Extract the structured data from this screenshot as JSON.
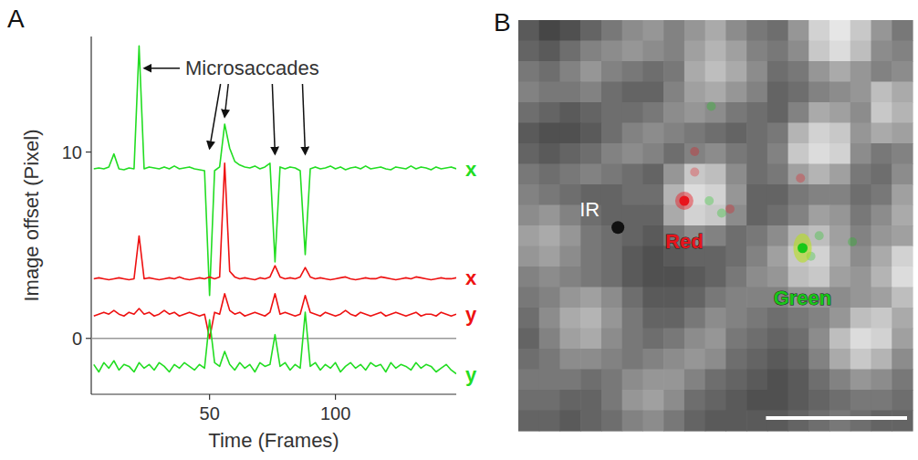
{
  "chart_data": [
    {
      "type": "line",
      "panel": "A",
      "y_label": "Image offset (Pixel)",
      "x_label": "Time (Frames)",
      "xlim": [
        3,
        148
      ],
      "ylim": [
        -3,
        16.2
      ],
      "xticks": [
        50,
        100
      ],
      "yticks": [
        0,
        10
      ],
      "reference_line": 0,
      "annotation": {
        "text": "Microsaccades",
        "targets": [
          {
            "x": 22,
            "y": 14.5
          },
          {
            "x": 50,
            "y": 10.2
          },
          {
            "x": 56,
            "y": 11.9
          },
          {
            "x": 76,
            "y": 9.9
          },
          {
            "x": 88,
            "y": 9.9
          }
        ]
      },
      "x": [
        4,
        6,
        8,
        10,
        12,
        14,
        16,
        18,
        20,
        22,
        24,
        26,
        28,
        30,
        32,
        34,
        36,
        38,
        40,
        42,
        44,
        46,
        48,
        50,
        52,
        54,
        56,
        58,
        60,
        62,
        64,
        66,
        68,
        70,
        72,
        74,
        76,
        78,
        80,
        82,
        84,
        86,
        88,
        90,
        92,
        94,
        96,
        98,
        100,
        102,
        104,
        106,
        108,
        110,
        112,
        114,
        116,
        118,
        120,
        122,
        124,
        126,
        128,
        130,
        132,
        134,
        136,
        138,
        140,
        142,
        144,
        146,
        148
      ],
      "series": [
        {
          "name": "x",
          "color": "#22dd22",
          "values": [
            9.1,
            9.15,
            9.1,
            9.2,
            9.9,
            9.1,
            9.05,
            9.15,
            9.1,
            15.7,
            9.1,
            9.2,
            9.15,
            9.1,
            9.2,
            9.1,
            9.25,
            9.1,
            9.15,
            9.2,
            9.1,
            9.05,
            9.0,
            2.3,
            9.0,
            9.2,
            11.5,
            10.2,
            9.5,
            9.3,
            9.2,
            9.15,
            9.25,
            9.1,
            9.2,
            9.4,
            4.1,
            9.2,
            9.1,
            9.2,
            9.15,
            9.0,
            4.5,
            9.1,
            9.2,
            9.1,
            9.15,
            9.25,
            9.1,
            9.2,
            9.05,
            9.15,
            9.2,
            9.1,
            9.25,
            9.1,
            9.15,
            9.2,
            9.1,
            9.05,
            9.2,
            9.15,
            9.1,
            9.25,
            9.1,
            9.2,
            9.15,
            9.05,
            9.2,
            9.1,
            9.15,
            9.2,
            9.1
          ]
        },
        {
          "name": "x",
          "color": "#ee1111",
          "values": [
            3.2,
            3.25,
            3.2,
            3.15,
            3.2,
            3.25,
            3.2,
            3.15,
            3.2,
            5.5,
            3.2,
            3.25,
            3.2,
            3.15,
            3.2,
            3.25,
            3.2,
            3.3,
            3.2,
            3.15,
            3.2,
            3.25,
            3.2,
            3.3,
            3.2,
            3.3,
            9.4,
            3.6,
            3.3,
            3.2,
            3.25,
            3.2,
            3.15,
            3.25,
            3.2,
            3.3,
            3.9,
            3.3,
            3.2,
            3.25,
            3.2,
            3.3,
            3.8,
            3.3,
            3.2,
            3.25,
            3.2,
            3.15,
            3.2,
            3.25,
            3.3,
            3.2,
            3.15,
            3.2,
            3.25,
            3.2,
            3.2,
            3.3,
            3.25,
            3.2,
            3.15,
            3.2,
            3.25,
            3.2,
            3.3,
            3.25,
            3.2,
            3.15,
            3.2,
            3.25,
            3.2,
            3.2,
            3.25
          ]
        },
        {
          "name": "y",
          "color": "#ee1111",
          "values": [
            1.2,
            1.3,
            1.4,
            1.3,
            1.5,
            1.3,
            1.2,
            1.4,
            1.3,
            1.6,
            1.3,
            1.4,
            1.2,
            1.3,
            1.5,
            1.3,
            1.4,
            1.2,
            1.3,
            1.4,
            1.3,
            1.2,
            1.3,
            0.0,
            1.4,
            1.3,
            2.4,
            1.5,
            1.3,
            1.4,
            1.2,
            1.3,
            1.4,
            1.3,
            1.2,
            1.4,
            2.4,
            1.3,
            1.4,
            1.3,
            1.2,
            1.3,
            2.3,
            1.4,
            1.3,
            1.2,
            1.4,
            1.3,
            1.2,
            1.3,
            1.5,
            1.3,
            1.2,
            1.4,
            1.3,
            1.2,
            1.3,
            1.4,
            1.2,
            1.3,
            1.4,
            1.3,
            1.2,
            1.3,
            1.4,
            1.2,
            1.3,
            1.3,
            1.2,
            1.4,
            1.3,
            1.2,
            1.3
          ]
        },
        {
          "name": "y",
          "color": "#22dd22",
          "values": [
            -1.4,
            -1.8,
            -1.3,
            -1.6,
            -1.2,
            -1.7,
            -1.4,
            -1.5,
            -1.8,
            -1.3,
            -1.6,
            -1.4,
            -1.7,
            -1.3,
            -1.5,
            -1.8,
            -1.4,
            -1.6,
            -1.3,
            -1.5,
            -1.7,
            -1.4,
            -1.6,
            1.0,
            -1.3,
            -1.5,
            -0.7,
            -1.4,
            -1.7,
            -1.3,
            -1.6,
            -1.4,
            -1.8,
            -1.3,
            -1.5,
            -1.4,
            0.2,
            -1.5,
            -1.3,
            -1.7,
            -1.4,
            -1.6,
            1.4,
            -1.5,
            -1.3,
            -1.7,
            -1.4,
            -1.6,
            -1.3,
            -1.8,
            -1.5,
            -1.3,
            -1.6,
            -1.4,
            -1.7,
            -1.3,
            -1.5,
            -1.4,
            -1.8,
            -1.3,
            -1.6,
            -1.4,
            -1.5,
            -1.7,
            -1.3,
            -1.6,
            -1.4,
            -1.5,
            -1.8,
            -1.6,
            -1.4,
            -1.7,
            -1.9
          ]
        }
      ]
    },
    {
      "type": "heatmap",
      "panel": "B",
      "zlim": [
        0,
        255
      ],
      "scale_bar": 6.8,
      "cells": [
        [
          90,
          70,
          80,
          100,
          120,
          140,
          150,
          130,
          150,
          170,
          140,
          120,
          110,
          150,
          210,
          230,
          200,
          150,
          120
        ],
        [
          100,
          90,
          110,
          130,
          140,
          150,
          140,
          130,
          160,
          180,
          160,
          130,
          120,
          140,
          200,
          220,
          190,
          140,
          130
        ],
        [
          120,
          110,
          130,
          150,
          130,
          120,
          110,
          120,
          170,
          190,
          170,
          140,
          110,
          120,
          150,
          170,
          150,
          130,
          140
        ],
        [
          130,
          120,
          120,
          130,
          110,
          100,
          100,
          130,
          160,
          170,
          150,
          130,
          100,
          110,
          130,
          140,
          150,
          190,
          170
        ],
        [
          110,
          100,
          90,
          100,
          110,
          110,
          120,
          140,
          150,
          140,
          120,
          110,
          100,
          130,
          170,
          160,
          140,
          200,
          180
        ],
        [
          90,
          80,
          80,
          90,
          110,
          130,
          140,
          130,
          120,
          110,
          100,
          110,
          120,
          180,
          210,
          200,
          150,
          170,
          160
        ],
        [
          100,
          90,
          100,
          110,
          130,
          140,
          130,
          110,
          130,
          140,
          120,
          110,
          130,
          200,
          220,
          210,
          140,
          120,
          130
        ],
        [
          120,
          110,
          120,
          130,
          120,
          110,
          100,
          150,
          200,
          190,
          140,
          110,
          120,
          160,
          180,
          160,
          120,
          110,
          140
        ],
        [
          130,
          120,
          110,
          100,
          100,
          110,
          110,
          180,
          220,
          210,
          150,
          100,
          100,
          120,
          130,
          130,
          110,
          120,
          160
        ],
        [
          140,
          150,
          130,
          110,
          100,
          100,
          100,
          170,
          210,
          200,
          140,
          100,
          110,
          130,
          160,
          150,
          120,
          140,
          170
        ],
        [
          160,
          170,
          150,
          120,
          110,
          100,
          90,
          120,
          140,
          130,
          110,
          120,
          140,
          180,
          190,
          160,
          130,
          150,
          160
        ],
        [
          150,
          160,
          140,
          120,
          110,
          90,
          80,
          90,
          100,
          100,
          110,
          130,
          160,
          200,
          210,
          170,
          140,
          170,
          210
        ],
        [
          130,
          140,
          130,
          120,
          110,
          90,
          80,
          80,
          90,
          100,
          120,
          140,
          150,
          190,
          200,
          160,
          150,
          180,
          220
        ],
        [
          120,
          130,
          150,
          160,
          140,
          110,
          90,
          90,
          100,
          120,
          130,
          130,
          130,
          150,
          150,
          140,
          150,
          160,
          190
        ],
        [
          110,
          140,
          170,
          180,
          150,
          120,
          100,
          100,
          120,
          140,
          130,
          120,
          110,
          120,
          130,
          150,
          190,
          200,
          170
        ],
        [
          100,
          130,
          160,
          170,
          140,
          120,
          110,
          120,
          140,
          150,
          120,
          110,
          100,
          110,
          140,
          190,
          220,
          210,
          160
        ],
        [
          110,
          120,
          140,
          140,
          130,
          120,
          130,
          140,
          150,
          140,
          110,
          100,
          90,
          100,
          130,
          170,
          200,
          180,
          140
        ],
        [
          120,
          120,
          120,
          110,
          120,
          140,
          150,
          150,
          130,
          110,
          100,
          90,
          80,
          90,
          110,
          130,
          150,
          140,
          120
        ],
        [
          110,
          110,
          100,
          100,
          120,
          150,
          160,
          140,
          110,
          100,
          90,
          80,
          80,
          90,
          100,
          110,
          120,
          120,
          110
        ],
        [
          100,
          100,
          90,
          100,
          110,
          130,
          140,
          120,
          100,
          90,
          90,
          90,
          90,
          100,
          110,
          120,
          110,
          100,
          100
        ]
      ],
      "series": [
        {
          "name": "IR",
          "color": "#111111",
          "x": [
            4.8
          ],
          "y": [
            10.1
          ],
          "trail_x": [],
          "trail_y": []
        },
        {
          "name": "Red",
          "color": "#e8141c",
          "x": [
            8.0
          ],
          "y": [
            8.8
          ],
          "trail_x": [
            8.5,
            8.5,
            10.2,
            13.6
          ],
          "trail_y": [
            6.4,
            7.4,
            9.2,
            7.7
          ]
        },
        {
          "name": "Green",
          "color": "#18c818",
          "x": [
            13.7
          ],
          "y": [
            11.1
          ],
          "trail_x": [
            9.3,
            9.2,
            9.8,
            14.5,
            16.1,
            14.1
          ],
          "trail_y": [
            4.2,
            8.8,
            9.4,
            10.5,
            10.8,
            11.5
          ]
        }
      ]
    }
  ]
}
